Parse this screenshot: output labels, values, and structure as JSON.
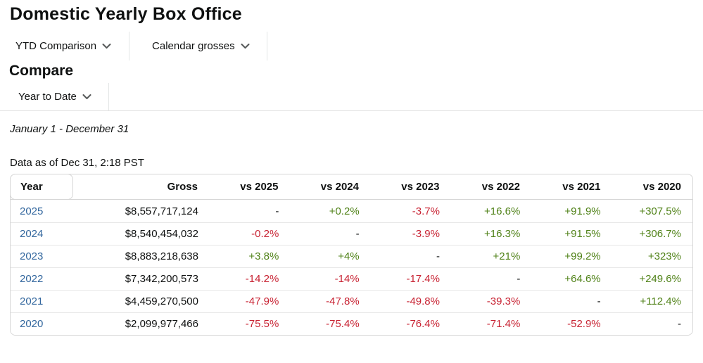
{
  "page": {
    "title": "Domestic Yearly Box Office",
    "section_title": "Compare",
    "date_range": "January 1 - December 31",
    "data_as_of": "Data as of Dec 31, 2:18 PST"
  },
  "toolbar": {
    "items": [
      {
        "label": "YTD Comparison"
      },
      {
        "label": "Calendar grosses"
      }
    ]
  },
  "compare_filter": {
    "label": "Year to Date"
  },
  "icons": {
    "dropdown": "chevron-down-icon"
  },
  "colors": {
    "positive": "#508218",
    "negative": "#C82333",
    "link_blue": "#33679E",
    "text": "#0F1111",
    "border": "#d6d6d6"
  },
  "table": {
    "columns": [
      "Year",
      "Gross",
      "vs 2025",
      "vs 2024",
      "vs 2023",
      "vs 2022",
      "vs 2021",
      "vs 2020"
    ],
    "rows": [
      {
        "year": "2025",
        "gross": "$8,557,717,124",
        "vs": [
          "-",
          "+0.2%",
          "-3.7%",
          "+16.6%",
          "+91.9%",
          "+307.5%"
        ]
      },
      {
        "year": "2024",
        "gross": "$8,540,454,032",
        "vs": [
          "-0.2%",
          "-",
          "-3.9%",
          "+16.3%",
          "+91.5%",
          "+306.7%"
        ]
      },
      {
        "year": "2023",
        "gross": "$8,883,218,638",
        "vs": [
          "+3.8%",
          "+4%",
          "-",
          "+21%",
          "+99.2%",
          "+323%"
        ]
      },
      {
        "year": "2022",
        "gross": "$7,342,200,573",
        "vs": [
          "-14.2%",
          "-14%",
          "-17.4%",
          "-",
          "+64.6%",
          "+249.6%"
        ]
      },
      {
        "year": "2021",
        "gross": "$4,459,270,500",
        "vs": [
          "-47.9%",
          "-47.8%",
          "-49.8%",
          "-39.3%",
          "-",
          "+112.4%"
        ]
      },
      {
        "year": "2020",
        "gross": "$2,099,977,466",
        "vs": [
          "-75.5%",
          "-75.4%",
          "-76.4%",
          "-71.4%",
          "-52.9%",
          "-"
        ]
      }
    ]
  }
}
